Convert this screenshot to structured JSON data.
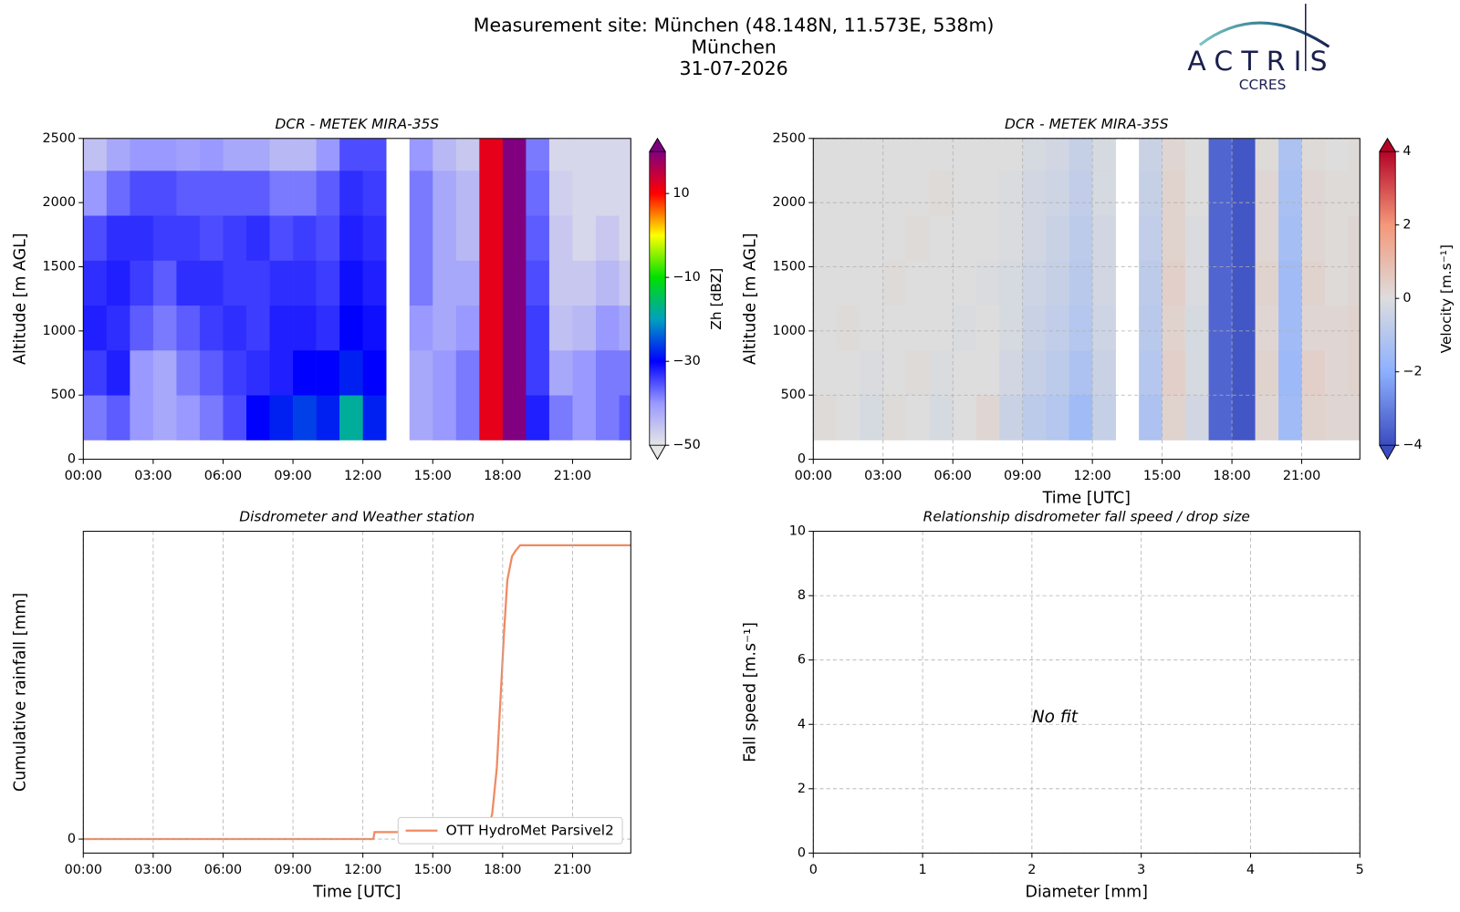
{
  "header": {
    "title": "Measurement site: München (48.148N, 11.573E, 538m)",
    "subtitle": "München",
    "date": "31-07-2026",
    "logo": "ACTRIS",
    "logo_sub": "CCRES"
  },
  "chart_data": [
    {
      "type": "heatmap",
      "title": "DCR - METEK MIRA-35S",
      "ylabel": "Altitude [m AGL]",
      "xlim": [
        0,
        23.5
      ],
      "xticks": [
        {
          "value": 0,
          "label": "00:00"
        },
        {
          "value": 3,
          "label": "03:00"
        },
        {
          "value": 6,
          "label": "06:00"
        },
        {
          "value": 9,
          "label": "09:00"
        },
        {
          "value": 12,
          "label": "12:00"
        },
        {
          "value": 15,
          "label": "15:00"
        },
        {
          "value": 18,
          "label": "18:00"
        },
        {
          "value": 21,
          "label": "21:00"
        }
      ],
      "ylim": [
        0,
        2500
      ],
      "yticks": [
        0,
        500,
        1000,
        1500,
        2000,
        2500
      ],
      "grid": false,
      "x_edges": [
        0,
        1,
        2,
        3,
        4,
        5,
        6,
        7,
        8,
        9,
        10,
        11,
        12,
        13,
        14,
        15,
        16,
        17,
        18,
        19,
        20,
        21,
        22,
        23,
        23.5
      ],
      "y_edges": [
        150,
        500,
        850,
        1200,
        1550,
        1900,
        2250,
        2500
      ],
      "z": [
        [
          -38,
          -36,
          -40,
          -42,
          -40,
          -38,
          -35,
          -30,
          -28,
          -26,
          -28,
          -18,
          -28,
          null,
          -42,
          -40,
          -38,
          12,
          20,
          -32,
          -38,
          -40,
          -38,
          -36
        ],
        [
          -34,
          -32,
          -40,
          -42,
          -38,
          -36,
          -34,
          -33,
          -32,
          -30,
          -30,
          -28,
          -30,
          null,
          -42,
          -40,
          -38,
          12,
          20,
          -34,
          -42,
          -40,
          -38,
          -38
        ],
        [
          -32,
          -33,
          -36,
          -38,
          -36,
          -34,
          -33,
          -34,
          -32,
          -32,
          -33,
          -30,
          -31,
          null,
          -40,
          -42,
          -40,
          12,
          20,
          -34,
          -45,
          -44,
          -40,
          -42
        ],
        [
          -33,
          -32,
          -34,
          -36,
          -33,
          -33,
          -34,
          -34,
          -33,
          -33,
          -34,
          -31,
          -32,
          null,
          -38,
          -42,
          -42,
          12,
          20,
          -35,
          -46,
          -46,
          -44,
          -46
        ],
        [
          -35,
          -33,
          -33,
          -34,
          -34,
          -35,
          -34,
          -33,
          -35,
          -34,
          -35,
          -32,
          -33,
          null,
          -38,
          -42,
          -44,
          12,
          20,
          -36,
          -46,
          -48,
          -46,
          -48
        ],
        [
          -40,
          -37,
          -35,
          -35,
          -36,
          -36,
          -36,
          -36,
          -38,
          -38,
          -36,
          -33,
          -34,
          null,
          -38,
          -42,
          -44,
          12,
          20,
          -37,
          -47,
          -48,
          -48,
          -48
        ],
        [
          -45,
          -42,
          -40,
          -40,
          -41,
          -40,
          -42,
          -42,
          -44,
          -44,
          -40,
          -35,
          -35,
          null,
          -40,
          -44,
          -46,
          12,
          20,
          -38,
          -48,
          -48,
          -48,
          -48
        ]
      ],
      "colorbar": {
        "label": "Zh [dBZ]",
        "clim": [
          -50,
          20
        ],
        "ticks": [
          {
            "value": -50,
            "label": "−50"
          },
          {
            "value": -30,
            "label": "−30"
          },
          {
            "value": -10,
            "label": "−10"
          },
          10
        ],
        "colormap": [
          "#e6e6e6",
          "#9999ff",
          "#0000ff",
          "#00a0c0",
          "#00e000",
          "#ffff00",
          "#ff0000",
          "#800080"
        ]
      }
    },
    {
      "type": "heatmap",
      "title": "DCR - METEK MIRA-35S",
      "ylabel": "Altitude [m AGL]",
      "xlabel": "Time [UTC]",
      "xlim": [
        0,
        23.5
      ],
      "xticks": [
        {
          "value": 0,
          "label": "00:00"
        },
        {
          "value": 3,
          "label": "03:00"
        },
        {
          "value": 6,
          "label": "06:00"
        },
        {
          "value": 9,
          "label": "09:00"
        },
        {
          "value": 12,
          "label": "12:00"
        },
        {
          "value": 15,
          "label": "15:00"
        },
        {
          "value": 18,
          "label": "18:00"
        },
        {
          "value": 21,
          "label": "21:00"
        }
      ],
      "ylim": [
        0,
        2500
      ],
      "yticks": [
        0,
        500,
        1000,
        1500,
        2000,
        2500
      ],
      "grid": true,
      "x_edges": [
        0,
        1,
        2,
        3,
        4,
        5,
        6,
        7,
        8,
        9,
        10,
        11,
        12,
        13,
        14,
        15,
        16,
        17,
        18,
        19,
        20,
        21,
        22,
        23,
        23.5
      ],
      "y_edges": [
        150,
        500,
        850,
        1200,
        1550,
        1900,
        2250,
        2500
      ],
      "z": [
        [
          0.1,
          0,
          -0.2,
          0.1,
          0,
          -0.2,
          0,
          0.2,
          -0.5,
          -0.8,
          -1.0,
          -1.5,
          -0.6,
          null,
          -1.2,
          0.3,
          -0.3,
          -3.5,
          -3.8,
          0.2,
          -1.5,
          0.3,
          0.2,
          0.2
        ],
        [
          0,
          0,
          -0.1,
          0,
          0.1,
          -0.1,
          0,
          0,
          -0.3,
          -0.6,
          -0.8,
          -1.2,
          -0.5,
          null,
          -1.0,
          0.4,
          -0.2,
          -3.5,
          -3.8,
          0.3,
          -1.6,
          0.4,
          0.2,
          0.3
        ],
        [
          0,
          0.1,
          0,
          0,
          0,
          0,
          -0.1,
          0,
          -0.2,
          -0.5,
          -0.7,
          -1.0,
          -0.4,
          null,
          -0.9,
          0.3,
          -0.2,
          -3.5,
          -3.8,
          0.2,
          -1.5,
          0.2,
          0.2,
          0.3
        ],
        [
          0,
          0,
          0,
          0.1,
          0,
          0,
          0,
          -0.1,
          -0.2,
          -0.4,
          -0.6,
          -0.9,
          -0.3,
          null,
          -0.8,
          0.4,
          -0.1,
          -3.5,
          -3.8,
          0.3,
          -1.5,
          0.3,
          0.1,
          0.2
        ],
        [
          0,
          0,
          0,
          0,
          0.1,
          0,
          0,
          0,
          -0.1,
          -0.3,
          -0.5,
          -0.8,
          -0.3,
          null,
          -0.7,
          0.3,
          -0.1,
          -3.5,
          -3.8,
          0.2,
          -1.4,
          0.2,
          0.1,
          0.2
        ],
        [
          0,
          0,
          0,
          0,
          0,
          0.1,
          0,
          0,
          -0.1,
          -0.3,
          -0.4,
          -0.7,
          -0.2,
          null,
          -0.6,
          0.3,
          0,
          -3.5,
          -3.8,
          0.2,
          -1.3,
          0.2,
          0.1,
          0.1
        ],
        [
          0,
          0,
          0,
          0,
          0,
          0,
          0,
          0,
          0,
          -0.2,
          -0.3,
          -0.6,
          -0.2,
          null,
          -0.5,
          0.2,
          0,
          -3.5,
          -3.8,
          0.1,
          -1.2,
          0.1,
          0,
          0.1
        ]
      ],
      "colorbar": {
        "label": "Velocity [m.s⁻¹]",
        "clim": [
          -4,
          4
        ],
        "ticks": [
          {
            "value": -4,
            "label": "−4"
          },
          {
            "value": -2,
            "label": "−2"
          },
          0,
          2,
          4
        ],
        "colormap": [
          "#3b4cc0",
          "#8db0fe",
          "#dddddd",
          "#f4987a",
          "#b40426"
        ]
      }
    },
    {
      "type": "line",
      "title": "Disdrometer and Weather station",
      "ylabel": "Cumulative rainfall [mm]",
      "xlabel": "Time [UTC]",
      "xlim": [
        0,
        23.5
      ],
      "xticks": [
        {
          "value": 0,
          "label": "00:00"
        },
        {
          "value": 3,
          "label": "03:00"
        },
        {
          "value": 6,
          "label": "06:00"
        },
        {
          "value": 9,
          "label": "09:00"
        },
        {
          "value": 12,
          "label": "12:00"
        },
        {
          "value": 15,
          "label": "15:00"
        },
        {
          "value": 18,
          "label": "18:00"
        },
        {
          "value": 21,
          "label": "21:00"
        }
      ],
      "ylim": [
        -1,
        22
      ],
      "yticks": [
        0
      ],
      "grid": true,
      "legend": "lower right",
      "x": [
        0,
        12.45,
        12.5,
        17.35,
        17.55,
        17.75,
        17.9,
        18.05,
        18.2,
        18.4,
        18.55,
        18.75,
        23.5
      ],
      "series": [
        {
          "name": "OTT HydroMet Parsivel2",
          "color": "#ef8a62",
          "values": [
            0,
            0,
            0.5,
            0.5,
            1.8,
            5.1,
            9.8,
            14.5,
            18.5,
            20.2,
            20.6,
            21,
            21
          ]
        }
      ]
    },
    {
      "type": "scatter",
      "title": "Relationship disdrometer fall speed / drop size",
      "ylabel": "Fall speed [m.s⁻¹]",
      "xlabel": "Diameter [mm]",
      "xlim": [
        0,
        5
      ],
      "xticks": [
        0,
        1,
        2,
        3,
        4,
        5
      ],
      "ylim": [
        0,
        10
      ],
      "yticks": [
        0,
        2,
        4,
        6,
        8,
        10
      ],
      "grid": true,
      "annotation": "No fit"
    }
  ]
}
